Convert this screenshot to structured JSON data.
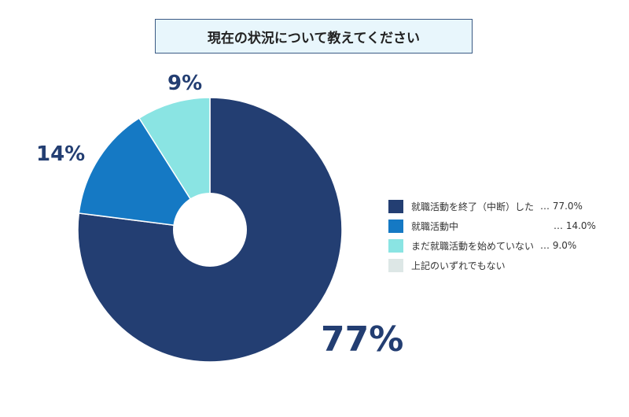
{
  "chart_data": {
    "type": "pie",
    "title": "現在の状況について教えてください",
    "donut": true,
    "slices": [
      {
        "name": "就職活動を終了（中断）した",
        "value": 77.0,
        "label": "77%",
        "legend_value": "… 77.0%",
        "color": "#233e72"
      },
      {
        "name": "就職活動中",
        "value": 14.0,
        "label": "14%",
        "legend_value": "… 14.0%",
        "color": "#1579c4"
      },
      {
        "name": "まだ就職活動を始めていない",
        "value": 9.0,
        "label": "9%",
        "legend_value": "… 9.0%",
        "color": "#8ae4e3"
      },
      {
        "name": "上記のいずれでもない",
        "value": 0,
        "label": "",
        "legend_value": "",
        "color": "#dde7e6"
      }
    ],
    "legend_position": "right"
  }
}
